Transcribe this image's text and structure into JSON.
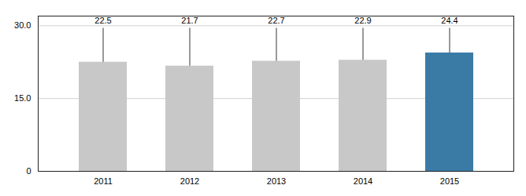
{
  "chart_data": {
    "type": "bar",
    "categories": [
      "2011",
      "2012",
      "2013",
      "2014",
      "2015"
    ],
    "values": [
      22.5,
      21.7,
      22.7,
      22.9,
      24.4
    ],
    "colors": [
      "#c8c8c8",
      "#c8c8c8",
      "#c8c8c8",
      "#c8c8c8",
      "#3a7ba6"
    ],
    "line_top": 29.5,
    "ylim": [
      0,
      32
    ],
    "yticks": [
      0,
      {
        "value": 15,
        "label": "15.0"
      },
      {
        "value": 30,
        "label": "30.0"
      }
    ],
    "grid": true,
    "data_labels": true
  }
}
